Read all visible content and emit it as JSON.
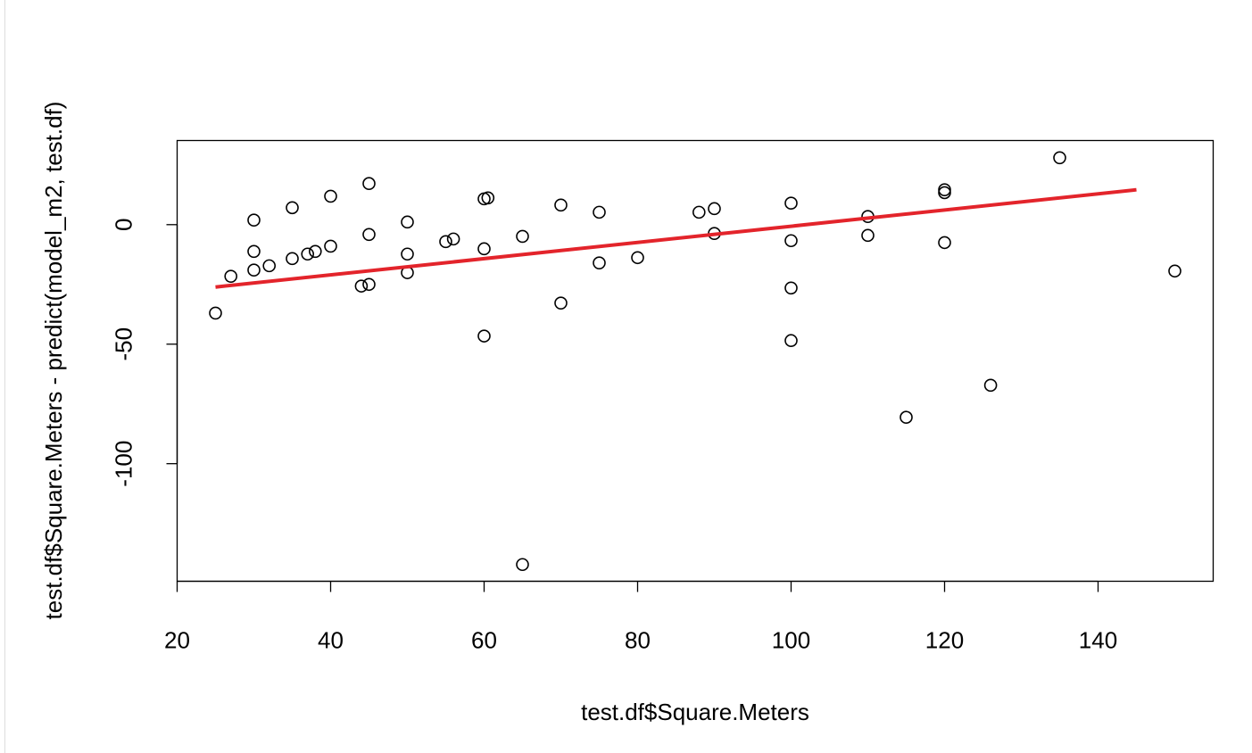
{
  "chart_data": {
    "type": "scatter",
    "xlabel": "test.df$Square.Meters",
    "ylabel": "test.df$Square.Meters - predict(model_m2, test.df)",
    "xlim": [
      20,
      155
    ],
    "ylim": [
      -149.2,
      35.2
    ],
    "xticks": [
      20,
      40,
      60,
      80,
      100,
      120,
      140
    ],
    "yticks": [
      -100,
      -50,
      0
    ],
    "color": "#000000",
    "x": [
      25,
      27,
      30,
      30,
      30,
      32,
      35,
      35,
      37,
      38,
      40,
      40,
      44,
      45,
      45,
      45,
      50,
      50,
      50,
      55,
      56,
      60,
      60.5,
      60,
      60,
      65,
      65,
      70,
      70,
      75,
      75,
      80,
      88,
      90,
      90,
      100,
      100,
      100,
      100,
      110,
      110,
      115,
      120,
      120,
      120,
      126,
      135,
      150
    ],
    "y": [
      -37,
      -21.6,
      1.9,
      -11.2,
      -19,
      -17.2,
      7.1,
      -14.2,
      -12.3,
      -11.2,
      11.9,
      -9,
      -25.7,
      -25,
      17.2,
      -4.1,
      1.1,
      -12.3,
      -20.1,
      -7.1,
      -6,
      10.8,
      11.2,
      -10.1,
      -46.6,
      -4.9,
      -142.2,
      8.2,
      -32.8,
      5.2,
      -16,
      -13.8,
      5.2,
      6.7,
      -3.7,
      9,
      -6.7,
      -26.5,
      -48.5,
      3.4,
      -4.5,
      -80.6,
      14.6,
      13.4,
      -7.5,
      -67.2,
      28,
      -19.4
    ],
    "fit": {
      "x": [
        25,
        145
      ],
      "y": [
        -26.1,
        14.6
      ],
      "color": "#e3242b"
    }
  }
}
